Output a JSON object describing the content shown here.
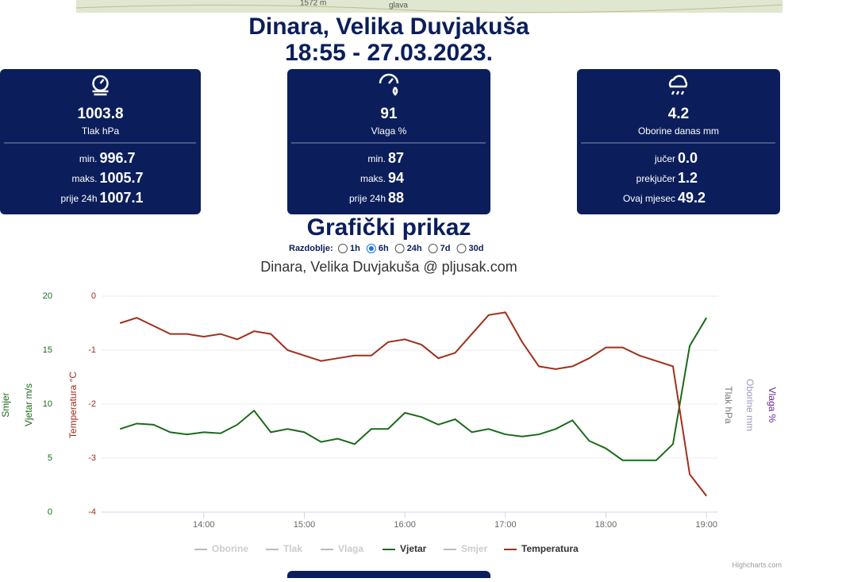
{
  "map_labels": [
    "1572 m",
    "glava"
  ],
  "header": {
    "title": "Dinara, Velika Duvjakuša",
    "subtitle": "18:55 - 27.03.2023."
  },
  "cards": [
    {
      "value": "1003.8",
      "label": "Tlak hPa",
      "rows": [
        {
          "label": "min.",
          "value": "996.7"
        },
        {
          "label": "maks.",
          "value": "1005.7"
        },
        {
          "label": "prije 24h",
          "value": "1007.1"
        }
      ]
    },
    {
      "value": "91",
      "label": "Vlaga %",
      "rows": [
        {
          "label": "min.",
          "value": "87"
        },
        {
          "label": "maks.",
          "value": "94"
        },
        {
          "label": "prije 24h",
          "value": "88"
        }
      ]
    },
    {
      "value": "4.2",
      "label": "Oborine danas mm",
      "rows": [
        {
          "label": "jučer",
          "value": "0.0"
        },
        {
          "label": "prekjučer",
          "value": "1.2"
        },
        {
          "label": "Ovaj mjesec",
          "value": "49.2"
        }
      ]
    }
  ],
  "section_title": "Grafički prikaz",
  "period": {
    "label": "Razdoblje:",
    "options": [
      "1h",
      "6h",
      "24h",
      "7d",
      "30d"
    ],
    "selected": 1
  },
  "chart_data": {
    "type": "line",
    "title": "Dinara, Velika Duvjakuša @ pljusak.com",
    "x": [
      790,
      800,
      810,
      820,
      830,
      840,
      850,
      860,
      870,
      880,
      890,
      900,
      910,
      920,
      930,
      940,
      950,
      960,
      970,
      980,
      990,
      1000,
      1010,
      1020,
      1030,
      1040,
      1050,
      1060,
      1070,
      1080,
      1090,
      1100,
      1110,
      1120,
      1130,
      1140
    ],
    "xlim": [
      779,
      1147
    ],
    "xticks": [
      {
        "value": 840,
        "label": "14:00"
      },
      {
        "value": 900,
        "label": "15:00"
      },
      {
        "value": 960,
        "label": "16:00"
      },
      {
        "value": 1020,
        "label": "17:00"
      },
      {
        "value": 1080,
        "label": "18:00"
      },
      {
        "value": 1140,
        "label": "19:00"
      }
    ],
    "ylim": [
      0,
      20
    ],
    "yticks": [
      0,
      5,
      10,
      15,
      20
    ],
    "y2lim": [
      -4,
      0
    ],
    "y2ticks": [
      -4,
      -3,
      -2,
      -1,
      0
    ],
    "grid": true,
    "axis_titles": [
      {
        "text": "Smjer",
        "color": "#1a6b1a",
        "side": "left"
      },
      {
        "text": "Vjetar m/s",
        "color": "#1a6b1a",
        "side": "left"
      },
      {
        "text": "Temperatura °C",
        "color": "#a0301c",
        "side": "left"
      },
      {
        "text": "Tlak hPa",
        "color": "#777777",
        "side": "right"
      },
      {
        "text": "Oborine mm",
        "color": "#9a9ac0",
        "side": "right"
      },
      {
        "text": "Vlaga %",
        "color": "#6a2a9a",
        "side": "right"
      }
    ],
    "series": [
      {
        "name": "Oborine",
        "color": "#bbbbbb",
        "visible": false
      },
      {
        "name": "Tlak",
        "color": "#bbbbbb",
        "visible": false
      },
      {
        "name": "Vlaga",
        "color": "#bbbbbb",
        "visible": false
      },
      {
        "name": "Vjetar",
        "color": "#1a6b1a",
        "visible": true,
        "values": [
          7.7,
          8.2,
          8.1,
          7.4,
          7.2,
          7.4,
          7.3,
          8.1,
          9.4,
          7.4,
          7.7,
          7.4,
          6.5,
          6.8,
          6.3,
          7.7,
          7.7,
          9.2,
          8.8,
          8.1,
          8.6,
          7.4,
          7.7,
          7.2,
          7.0,
          7.2,
          7.7,
          8.5,
          6.6,
          5.9,
          4.8,
          4.8,
          4.8,
          6.3,
          15.4,
          18.0
        ]
      },
      {
        "name": "Smjer",
        "color": "#bbbbbb",
        "visible": false
      },
      {
        "name": "Temperatura",
        "color": "#a0301c",
        "visible": true,
        "axis": "y2",
        "values": [
          -0.5,
          -0.4,
          -0.55,
          -0.7,
          -0.7,
          -0.75,
          -0.7,
          -0.8,
          -0.65,
          -0.7,
          -1.0,
          -1.1,
          -1.2,
          -1.15,
          -1.1,
          -1.1,
          -0.85,
          -0.8,
          -0.9,
          -1.15,
          -1.05,
          -0.7,
          -0.35,
          -0.3,
          -0.85,
          -1.3,
          -1.35,
          -1.3,
          -1.15,
          -0.95,
          -0.95,
          -1.1,
          -1.2,
          -1.3,
          -3.3,
          -3.7
        ]
      }
    ],
    "credits": "Highcharts.com"
  }
}
